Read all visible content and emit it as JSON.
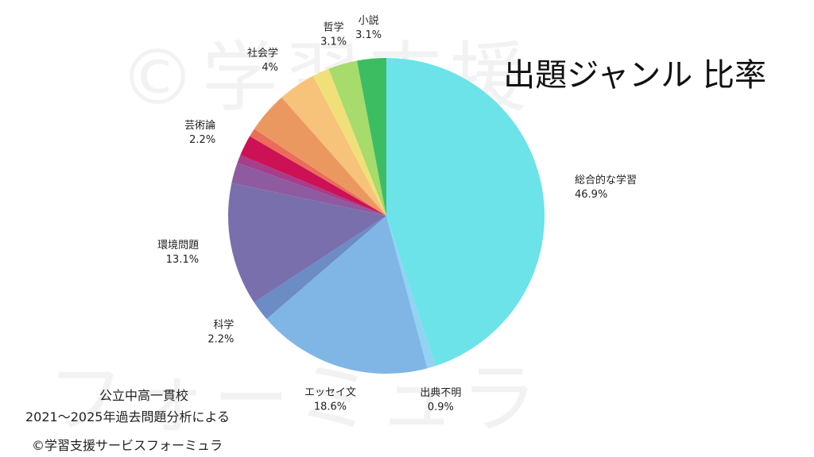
{
  "watermark": {
    "line1": "©学習支援",
    "line2": "フォーミュラ"
  },
  "title": "出題ジャンル 比率",
  "footer": {
    "line1": "公立中高一貫校",
    "line2": "2021〜2025年過去問題分析による",
    "line3": "©学習支援サービスフォーミュラ"
  },
  "chart_data": {
    "type": "pie",
    "title": "出題ジャンル 比率",
    "start_angle_deg": 0,
    "direction": "clockwise",
    "slices": [
      {
        "label": "総合的な学習",
        "value": 46.9,
        "value_label": "46.9%",
        "color": "#6be3e8",
        "labeled": true
      },
      {
        "label": "出典不明",
        "value": 0.9,
        "value_label": "0.9%",
        "color": "#92d2f2",
        "labeled": true
      },
      {
        "label": "エッセイ文",
        "value": 18.6,
        "value_label": "18.6%",
        "color": "#7fb6e6",
        "labeled": true
      },
      {
        "label": "科学",
        "value": 2.2,
        "value_label": "2.2%",
        "color": "#6b8cc4",
        "labeled": true
      },
      {
        "label": "環境問題",
        "value": 13.1,
        "value_label": "13.1%",
        "color": "#7a6fad",
        "labeled": true
      },
      {
        "label": "",
        "value": 2.2,
        "value_label": "",
        "color": "#8e5aa0",
        "labeled": false
      },
      {
        "label": "",
        "value": 0.9,
        "value_label": "",
        "color": "#a63e8c",
        "labeled": false
      },
      {
        "label": "芸術論",
        "value": 2.2,
        "value_label": "2.2%",
        "color": "#cc1155",
        "labeled": true
      },
      {
        "label": "",
        "value": 0.9,
        "value_label": "",
        "color": "#ea6c5a",
        "labeled": false
      },
      {
        "label": "",
        "value": 4.4,
        "value_label": "",
        "color": "#eb9860",
        "labeled": false
      },
      {
        "label": "社会学",
        "value": 4,
        "value_label": "4%",
        "color": "#f7c27a",
        "labeled": true
      },
      {
        "label": "",
        "value": 1.8,
        "value_label": "",
        "color": "#f1e07a",
        "labeled": false
      },
      {
        "label": "哲学",
        "value": 3.1,
        "value_label": "3.1%",
        "color": "#a7db6b",
        "labeled": true
      },
      {
        "label": "小説",
        "value": 3.1,
        "value_label": "3.1%",
        "color": "#3dbd62",
        "labeled": true
      }
    ]
  }
}
